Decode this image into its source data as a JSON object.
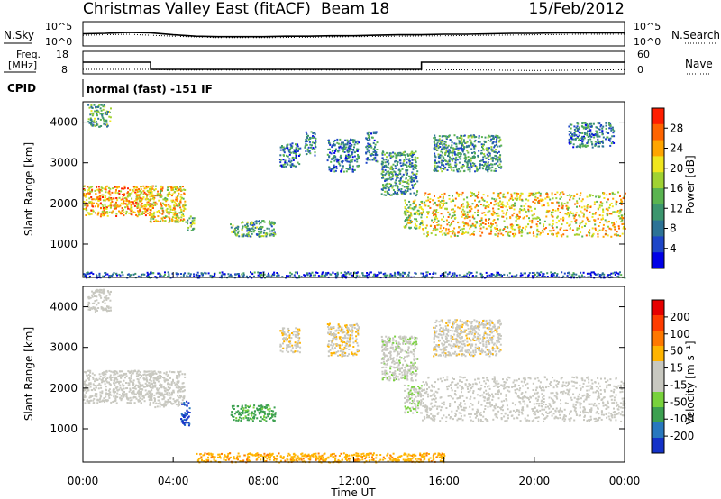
{
  "header": {
    "title": "Christmas Valley East (fitACF)",
    "beam": "Beam 18",
    "date": "15/Feb/2012"
  },
  "panel_labels": {
    "nsky": "N.Sky",
    "nsearch": "N.Search",
    "freq_line1": "Freq.",
    "freq_line2": "[MHz]",
    "nave": "Nave",
    "cpid": "CPID",
    "cpid_value": "normal (fast) -151 IF"
  },
  "noise_axis": {
    "left_top": "10^5",
    "left_bottom": "10^0",
    "right_top": "10^5",
    "right_bottom": "10^0"
  },
  "freq_axis": {
    "left_top": "18",
    "left_bottom": "8",
    "right_top": "60",
    "right_bottom": "0"
  },
  "colorbars": {
    "power": {
      "label": "Power [dB]",
      "ticks": [
        "28",
        "24",
        "20",
        "16",
        "12",
        "8",
        "4"
      ],
      "colors": [
        "#0000e6",
        "#1e46c8",
        "#2d7396",
        "#3c966e",
        "#5ab450",
        "#a0d232",
        "#f0e61e",
        "#ffa500",
        "#ff6400",
        "#ff1e00"
      ]
    },
    "velocity": {
      "label": "Velocity [m s⁻¹]",
      "ticks": [
        "200",
        "100",
        "50",
        "15",
        "-15",
        "-50",
        "-100",
        "-200"
      ],
      "colors": [
        "#1432c8",
        "#2878be",
        "#3ca050",
        "#78d23c",
        "#c8c8c0",
        "#c8c8c0",
        "#ffb400",
        "#ff7800",
        "#ff3c00",
        "#e60000"
      ]
    }
  },
  "chart_data": [
    {
      "type": "line",
      "title": "Noise",
      "series": [
        {
          "name": "N.Sky",
          "x": [
            0,
            1,
            2,
            3,
            4,
            5,
            6,
            7,
            8,
            9,
            10,
            11,
            12,
            13,
            14,
            15,
            16,
            17,
            18,
            19,
            20,
            21,
            22,
            23,
            24
          ],
          "y": [
            2.5,
            2.6,
            2.8,
            2.7,
            2.3,
            2.0,
            1.9,
            1.9,
            1.9,
            2.0,
            2.0,
            2.1,
            2.1,
            2.2,
            2.3,
            2.3,
            2.4,
            2.4,
            2.5,
            2.6,
            2.6,
            2.7,
            2.7,
            2.7,
            2.7
          ]
        },
        {
          "name": "N.Search",
          "x": [
            0,
            2,
            4,
            6,
            8,
            10,
            12,
            14,
            16,
            18,
            20,
            22,
            24
          ],
          "y": [
            2.2,
            2.4,
            2.0,
            1.7,
            1.7,
            1.8,
            1.9,
            2.0,
            2.1,
            2.2,
            2.3,
            2.4,
            2.4
          ]
        }
      ],
      "ylim": [
        0,
        5
      ]
    },
    {
      "type": "line",
      "title": "Frequency",
      "series": [
        {
          "name": "Freq.",
          "x": [
            0,
            2.999,
            3,
            14.999,
            15,
            24
          ],
          "y": [
            13.2,
            13.2,
            10.0,
            10.0,
            13.2,
            13.2
          ]
        },
        {
          "name": "Nave",
          "x": [
            0,
            3,
            4,
            8,
            12,
            15,
            16,
            18,
            20,
            24
          ],
          "y": [
            12,
            12,
            10,
            10,
            10,
            10,
            11,
            10,
            9,
            11
          ]
        }
      ],
      "ylim": [
        8,
        18
      ],
      "y2lim": [
        0,
        60
      ]
    },
    {
      "type": "heatmap",
      "variable": "power",
      "xlabel": "",
      "ylabel": "Slant Range [km]",
      "xlim": [
        0,
        24
      ],
      "ylim": [
        180,
        4500
      ],
      "yticks": [
        1000,
        2000,
        3000,
        4000
      ],
      "clim": [
        0,
        30
      ],
      "regions": [
        {
          "x": [
            0.0,
            3.0
          ],
          "r": [
            1700,
            2450
          ],
          "v": 22
        },
        {
          "x": [
            0.2,
            1.2
          ],
          "r": [
            3900,
            4450
          ],
          "v": 12
        },
        {
          "x": [
            2.9,
            4.5
          ],
          "r": [
            1550,
            2450
          ],
          "v": 20
        },
        {
          "x": [
            4.5,
            4.9
          ],
          "r": [
            1350,
            1700
          ],
          "v": 12
        },
        {
          "x": [
            6.5,
            8.5
          ],
          "r": [
            1200,
            1600
          ],
          "v": 12
        },
        {
          "x": [
            8.7,
            9.6
          ],
          "r": [
            2900,
            3500
          ],
          "v": 8
        },
        {
          "x": [
            9.8,
            10.3
          ],
          "r": [
            3200,
            3800
          ],
          "v": 8
        },
        {
          "x": [
            10.8,
            12.2
          ],
          "r": [
            2800,
            3600
          ],
          "v": 8
        },
        {
          "x": [
            12.5,
            13.0
          ],
          "r": [
            3000,
            3800
          ],
          "v": 8
        },
        {
          "x": [
            13.2,
            14.8
          ],
          "r": [
            2200,
            3300
          ],
          "v": 10
        },
        {
          "x": [
            14.2,
            15.0
          ],
          "r": [
            1400,
            2100
          ],
          "v": 16
        },
        {
          "x": [
            15.0,
            24.0
          ],
          "r": [
            1200,
            2300
          ],
          "v": 20
        },
        {
          "x": [
            15.5,
            18.5
          ],
          "r": [
            2800,
            3700
          ],
          "v": 10
        },
        {
          "x": [
            21.5,
            23.5
          ],
          "r": [
            3400,
            4000
          ],
          "v": 8
        },
        {
          "x": [
            0.0,
            24.0
          ],
          "r": [
            190,
            330
          ],
          "v": 6
        }
      ]
    },
    {
      "type": "heatmap",
      "variable": "velocity",
      "xlabel": "Time UT",
      "ylabel": "Slant Range [km]",
      "xlim": [
        0,
        24
      ],
      "ylim": [
        180,
        4500
      ],
      "xticks": [
        "00:00",
        "04:00",
        "08:00",
        "12:00",
        "16:00",
        "20:00",
        "00:00"
      ],
      "yticks": [
        1000,
        2000,
        3000,
        4000
      ],
      "clim": [
        -250,
        250
      ],
      "regions": [
        {
          "x": [
            0.0,
            3.0
          ],
          "r": [
            1650,
            2450
          ],
          "v": 0
        },
        {
          "x": [
            0.2,
            1.2
          ],
          "r": [
            3900,
            4450
          ],
          "v": 20
        },
        {
          "x": [
            2.9,
            4.5
          ],
          "r": [
            1550,
            2450
          ],
          "v": 0
        },
        {
          "x": [
            4.3,
            4.7
          ],
          "r": [
            1100,
            1700
          ],
          "v": 220
        },
        {
          "x": [
            6.5,
            8.5
          ],
          "r": [
            1200,
            1600
          ],
          "v": 120
        },
        {
          "x": [
            8.7,
            9.6
          ],
          "r": [
            2900,
            3500
          ],
          "v": -40
        },
        {
          "x": [
            10.8,
            12.2
          ],
          "r": [
            2800,
            3600
          ],
          "v": -40
        },
        {
          "x": [
            13.2,
            14.8
          ],
          "r": [
            2200,
            3300
          ],
          "v": 30
        },
        {
          "x": [
            14.2,
            15.0
          ],
          "r": [
            1400,
            2100
          ],
          "v": 40
        },
        {
          "x": [
            15.0,
            24.0
          ],
          "r": [
            1200,
            2300
          ],
          "v": 0
        },
        {
          "x": [
            15.5,
            18.5
          ],
          "r": [
            2800,
            3700
          ],
          "v": -30
        },
        {
          "x": [
            5.0,
            16.0
          ],
          "r": [
            190,
            420
          ],
          "v": -80
        }
      ]
    }
  ]
}
